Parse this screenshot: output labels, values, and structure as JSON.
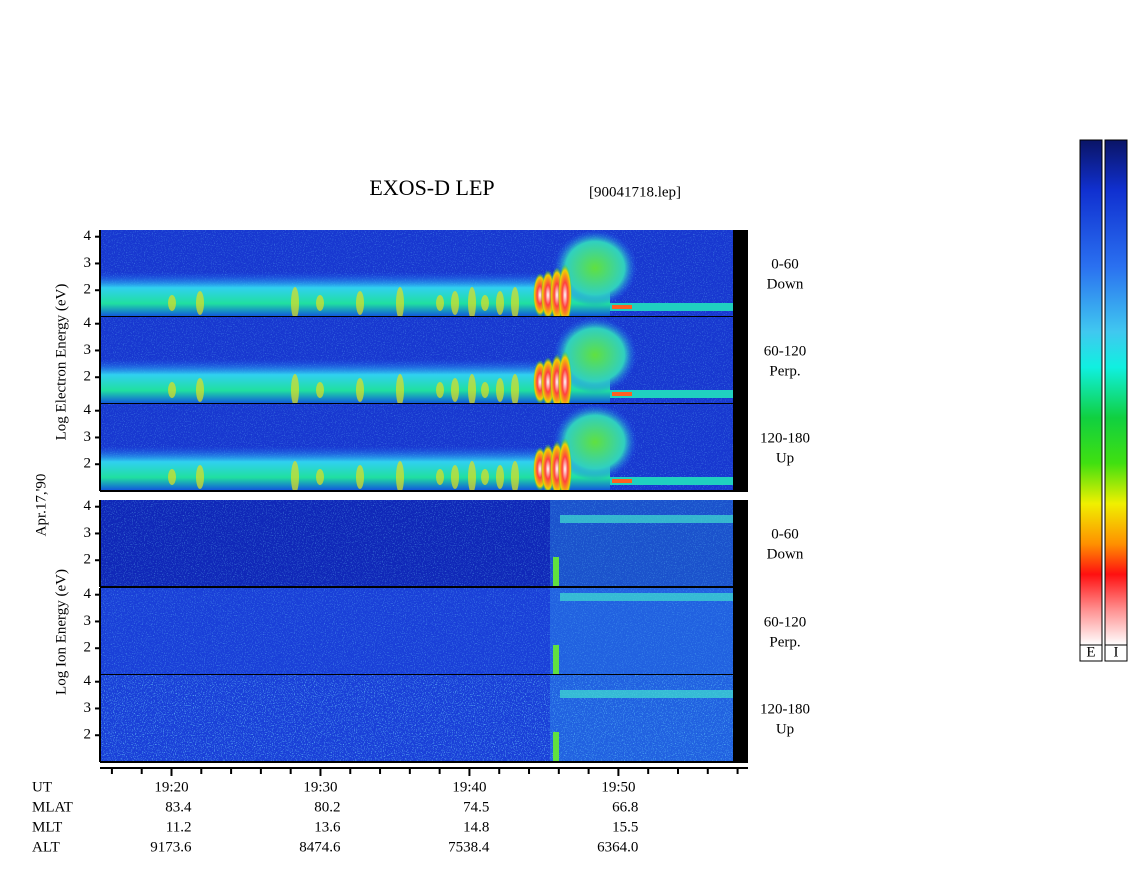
{
  "title": "EXOS-D LEP",
  "file": "[90041718.lep]",
  "date": "Apr.17,'90",
  "electron_axis": "Log  Electron  Energy (eV)",
  "ion_axis": "Log  Ion  Energy (eV)",
  "panels": [
    {
      "angle": "0-60",
      "dir": "Down"
    },
    {
      "angle": "60-120",
      "dir": "Perp."
    },
    {
      "angle": "120-180",
      "dir": "Up"
    },
    {
      "angle": "0-60",
      "dir": "Down"
    },
    {
      "angle": "60-120",
      "dir": "Perp."
    },
    {
      "angle": "120-180",
      "dir": "Up"
    }
  ],
  "ylim": [
    1,
    4.25
  ],
  "yticks": [
    2,
    3,
    4
  ],
  "xlim": [
    1155.2,
    1198.7
  ],
  "xticks": [
    {
      "value": 1160,
      "label": "19:20"
    },
    {
      "value": 1170,
      "label": "19:30"
    },
    {
      "value": 1180,
      "label": "19:40"
    },
    {
      "value": 1190,
      "label": "19:50"
    }
  ],
  "minor_xticks": [
    1156,
    1158,
    1162,
    1164,
    1166,
    1168,
    1172,
    1174,
    1176,
    1178,
    1182,
    1184,
    1186,
    1188,
    1192,
    1194,
    1196,
    1198
  ],
  "ut_label": "UT",
  "ephemeris": [
    {
      "name": "MLAT",
      "values": [
        "83.4",
        "80.2",
        "74.5",
        "66.8"
      ]
    },
    {
      "name": "MLT",
      "values": [
        "11.2",
        "13.6",
        "14.8",
        "15.5"
      ]
    },
    {
      "name": "ALT",
      "values": [
        "9173.6",
        "8474.6",
        "7538.4",
        "6364.0"
      ]
    }
  ],
  "colorbars": [
    "E",
    "I"
  ]
}
